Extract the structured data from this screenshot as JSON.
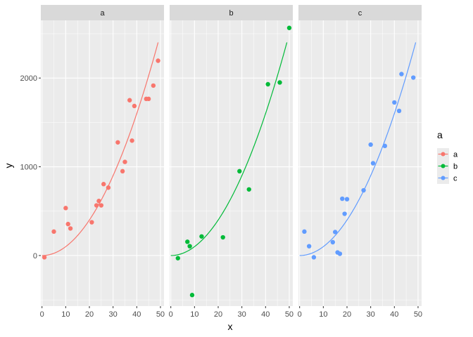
{
  "chart_data": {
    "type": "scatter",
    "facet_var": "a",
    "xlabel": "x",
    "ylabel": "y",
    "xlim": [
      -0.5,
      51.5
    ],
    "ylim": [
      -570,
      2650
    ],
    "x_ticks": [
      0,
      10,
      20,
      30,
      40,
      50
    ],
    "x_tick_labels": [
      "0",
      "10",
      "20",
      "30",
      "40",
      "50"
    ],
    "y_ticks": [
      0,
      1000,
      2000
    ],
    "y_tick_labels": [
      "0",
      "1000",
      "2000"
    ],
    "grid": true,
    "legend": {
      "title": "a",
      "position": "right",
      "entries": [
        "a",
        "b",
        "c"
      ]
    },
    "fit": "y = x^2 (smooth curve)",
    "panels": [
      {
        "label": "a",
        "color": "#F8766D",
        "points": [
          {
            "x": 1,
            "y": -20
          },
          {
            "x": 5,
            "y": 270
          },
          {
            "x": 10,
            "y": 535
          },
          {
            "x": 11,
            "y": 355
          },
          {
            "x": 12,
            "y": 305
          },
          {
            "x": 21,
            "y": 375
          },
          {
            "x": 23,
            "y": 565
          },
          {
            "x": 24,
            "y": 615
          },
          {
            "x": 25,
            "y": 565
          },
          {
            "x": 26,
            "y": 805
          },
          {
            "x": 28,
            "y": 765
          },
          {
            "x": 32,
            "y": 1275
          },
          {
            "x": 34,
            "y": 950
          },
          {
            "x": 35,
            "y": 1055
          },
          {
            "x": 37,
            "y": 1750
          },
          {
            "x": 38,
            "y": 1295
          },
          {
            "x": 39,
            "y": 1685
          },
          {
            "x": 44,
            "y": 1765
          },
          {
            "x": 45,
            "y": 1765
          },
          {
            "x": 47,
            "y": 1915
          },
          {
            "x": 49,
            "y": 2195
          }
        ]
      },
      {
        "label": "b",
        "color": "#00BA38",
        "points": [
          {
            "x": 3,
            "y": -30
          },
          {
            "x": 7,
            "y": 155
          },
          {
            "x": 8,
            "y": 105
          },
          {
            "x": 9,
            "y": -445
          },
          {
            "x": 13,
            "y": 215
          },
          {
            "x": 22,
            "y": 205
          },
          {
            "x": 29,
            "y": 950
          },
          {
            "x": 33,
            "y": 745
          },
          {
            "x": 41,
            "y": 1930
          },
          {
            "x": 46,
            "y": 1950
          },
          {
            "x": 50,
            "y": 2565
          }
        ]
      },
      {
        "label": "c",
        "color": "#619CFF",
        "points": [
          {
            "x": 2,
            "y": 270
          },
          {
            "x": 4,
            "y": 105
          },
          {
            "x": 6,
            "y": -20
          },
          {
            "x": 14,
            "y": 150
          },
          {
            "x": 15,
            "y": 265
          },
          {
            "x": 16,
            "y": 35
          },
          {
            "x": 17,
            "y": 20
          },
          {
            "x": 18,
            "y": 640
          },
          {
            "x": 19,
            "y": 470
          },
          {
            "x": 20,
            "y": 635
          },
          {
            "x": 27,
            "y": 735
          },
          {
            "x": 30,
            "y": 1250
          },
          {
            "x": 31,
            "y": 1040
          },
          {
            "x": 36,
            "y": 1235
          },
          {
            "x": 40,
            "y": 1725
          },
          {
            "x": 42,
            "y": 1630
          },
          {
            "x": 43,
            "y": 2045
          },
          {
            "x": 48,
            "y": 2005
          }
        ]
      }
    ]
  }
}
